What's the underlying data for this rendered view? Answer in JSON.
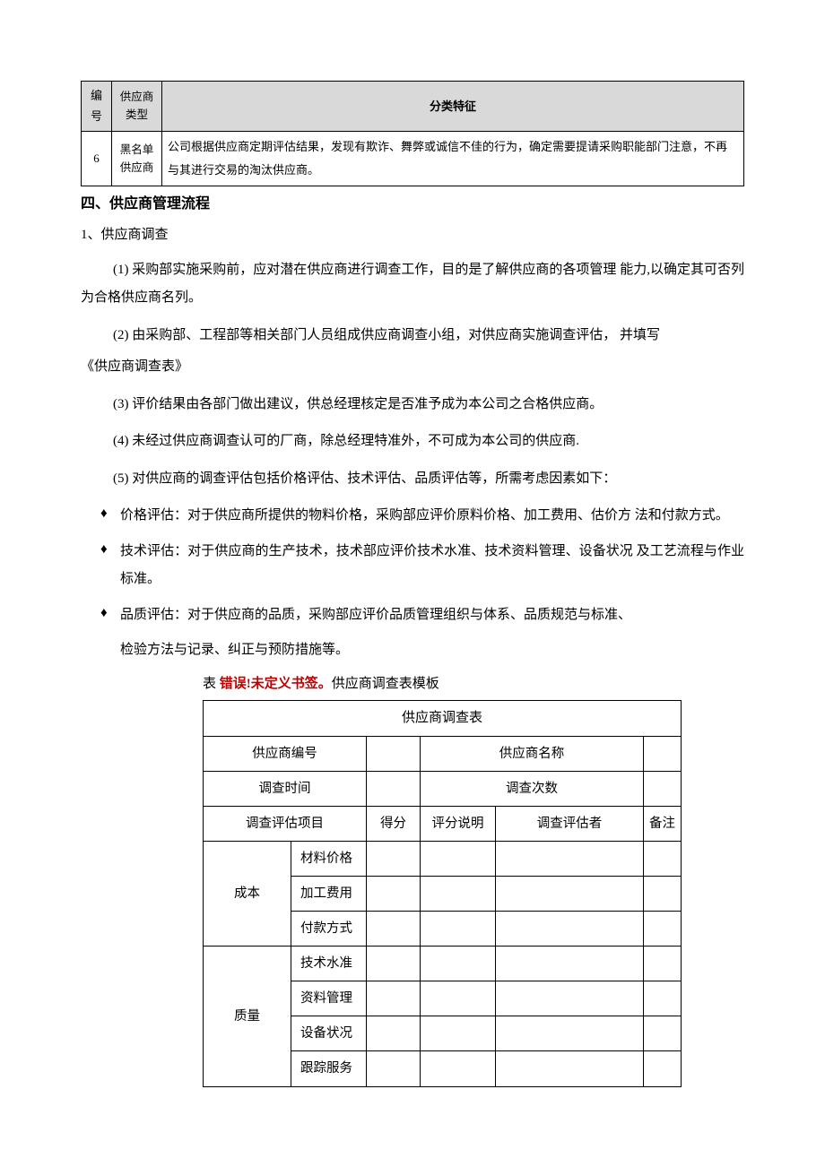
{
  "table1": {
    "headers": {
      "num": "编\n号",
      "type": "供应商\n类型",
      "feature": "分类特征"
    },
    "row": {
      "num": "6",
      "type": "黑名单\n供应商",
      "feature": "公司根据供应商定期评估结果，发现有欺诈、舞弊或诚信不佳的行为，确定需要提请采购职能部门注意，不再与其进行交易的淘汰供应商。"
    }
  },
  "sectionHeading": "四、供应商管理流程",
  "item1": {
    "lead": "1、供应商调查",
    "p1": "(1)  采购部实施采购前，应对潜在供应商进行调查工作，目的是了解供应商的各项管理 能力,以确定其可否列为合格供应商名列。",
    "p2": "(2) 由采购部、工程部等相关部门人员组成供应商调查小组，对供应商实施调查评估， 并填写",
    "p2b": "《供应商调查表》",
    "p3": "(3)  评价结果由各部门做出建议，供总经理核定是否准予成为本公司之合格供应商。",
    "p4": "(4)   未经过供应商调查认可的厂商，除总经理特准外，不可成为本公司的供应商.",
    "p5": "(5)       对供应商的调查评估包括价格评估、技术评估、品质评估等，所需考虑因素如下："
  },
  "bullets": {
    "b1": "价格评估：对于供应商所提供的物料价格，采购部应评价原料价格、加工费用、估价方 法和付款方式。",
    "b2": "技术评估：对于供应商的生产技术，技术部应评价技术水准、技术资料管理、设备状况 及工艺流程与作业标准。",
    "b3_line1": "品质评估：对于供应商的品质，采购部应评价品质管理组织与体系、品质规范与标准、",
    "b3_line2": "检验方法与记录、纠正与预防措施等。"
  },
  "tableCaption": {
    "prefix": "表 ",
    "error": "错误!未定义书签。",
    "suffix": "供应商调查表模板"
  },
  "table2": {
    "title": "供应商调查表",
    "r1": {
      "a": "供应商编号",
      "b": "",
      "c": "供应商名称",
      "d": ""
    },
    "r2": {
      "a": "调查时间",
      "b": "",
      "c": "调查次数",
      "d": ""
    },
    "hdr": {
      "a": "调查评估项目",
      "b": "得分",
      "c": "评分说明",
      "d": "调查评估者",
      "e": "备注"
    },
    "groups": [
      {
        "cat": "成本",
        "items": [
          "材料价格",
          "加工费用",
          "付款方式"
        ]
      },
      {
        "cat": "质量",
        "items": [
          "技术水准",
          "资料管理",
          "设备状况",
          "跟踪服务"
        ]
      }
    ]
  }
}
